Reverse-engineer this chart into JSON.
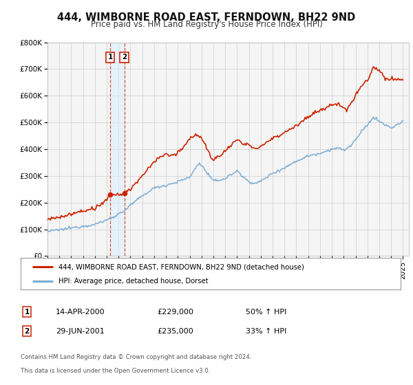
{
  "title": "444, WIMBORNE ROAD EAST, FERNDOWN, BH22 9ND",
  "subtitle": "Price paid vs. HM Land Registry's House Price Index (HPI)",
  "legend_line1": "444, WIMBORNE ROAD EAST, FERNDOWN, BH22 9ND (detached house)",
  "legend_line2": "HPI: Average price, detached house, Dorset",
  "sale1_date": "14-APR-2000",
  "sale1_price": "£229,000",
  "sale1_hpi": "50% ↑ HPI",
  "sale2_date": "29-JUN-2001",
  "sale2_price": "£235,000",
  "sale2_hpi": "33% ↑ HPI",
  "footnote1": "Contains HM Land Registry data © Crown copyright and database right 2024.",
  "footnote2": "This data is licensed under the Open Government Licence v3.0.",
  "hpi_color": "#7aadd4",
  "price_color": "#cc2200",
  "background_color": "#ffffff",
  "plot_bg_color": "#f5f5f5",
  "ylim": [
    0,
    800000
  ],
  "xlim_start": 1995.0,
  "xlim_end": 2025.5,
  "sale1_x": 2000.29,
  "sale1_y": 229000,
  "sale2_x": 2001.49,
  "sale2_y": 235000,
  "grid_color": "#cccccc",
  "title_fontsize": 10.5,
  "subtitle_fontsize": 8.5,
  "axis_fontsize": 7.5
}
